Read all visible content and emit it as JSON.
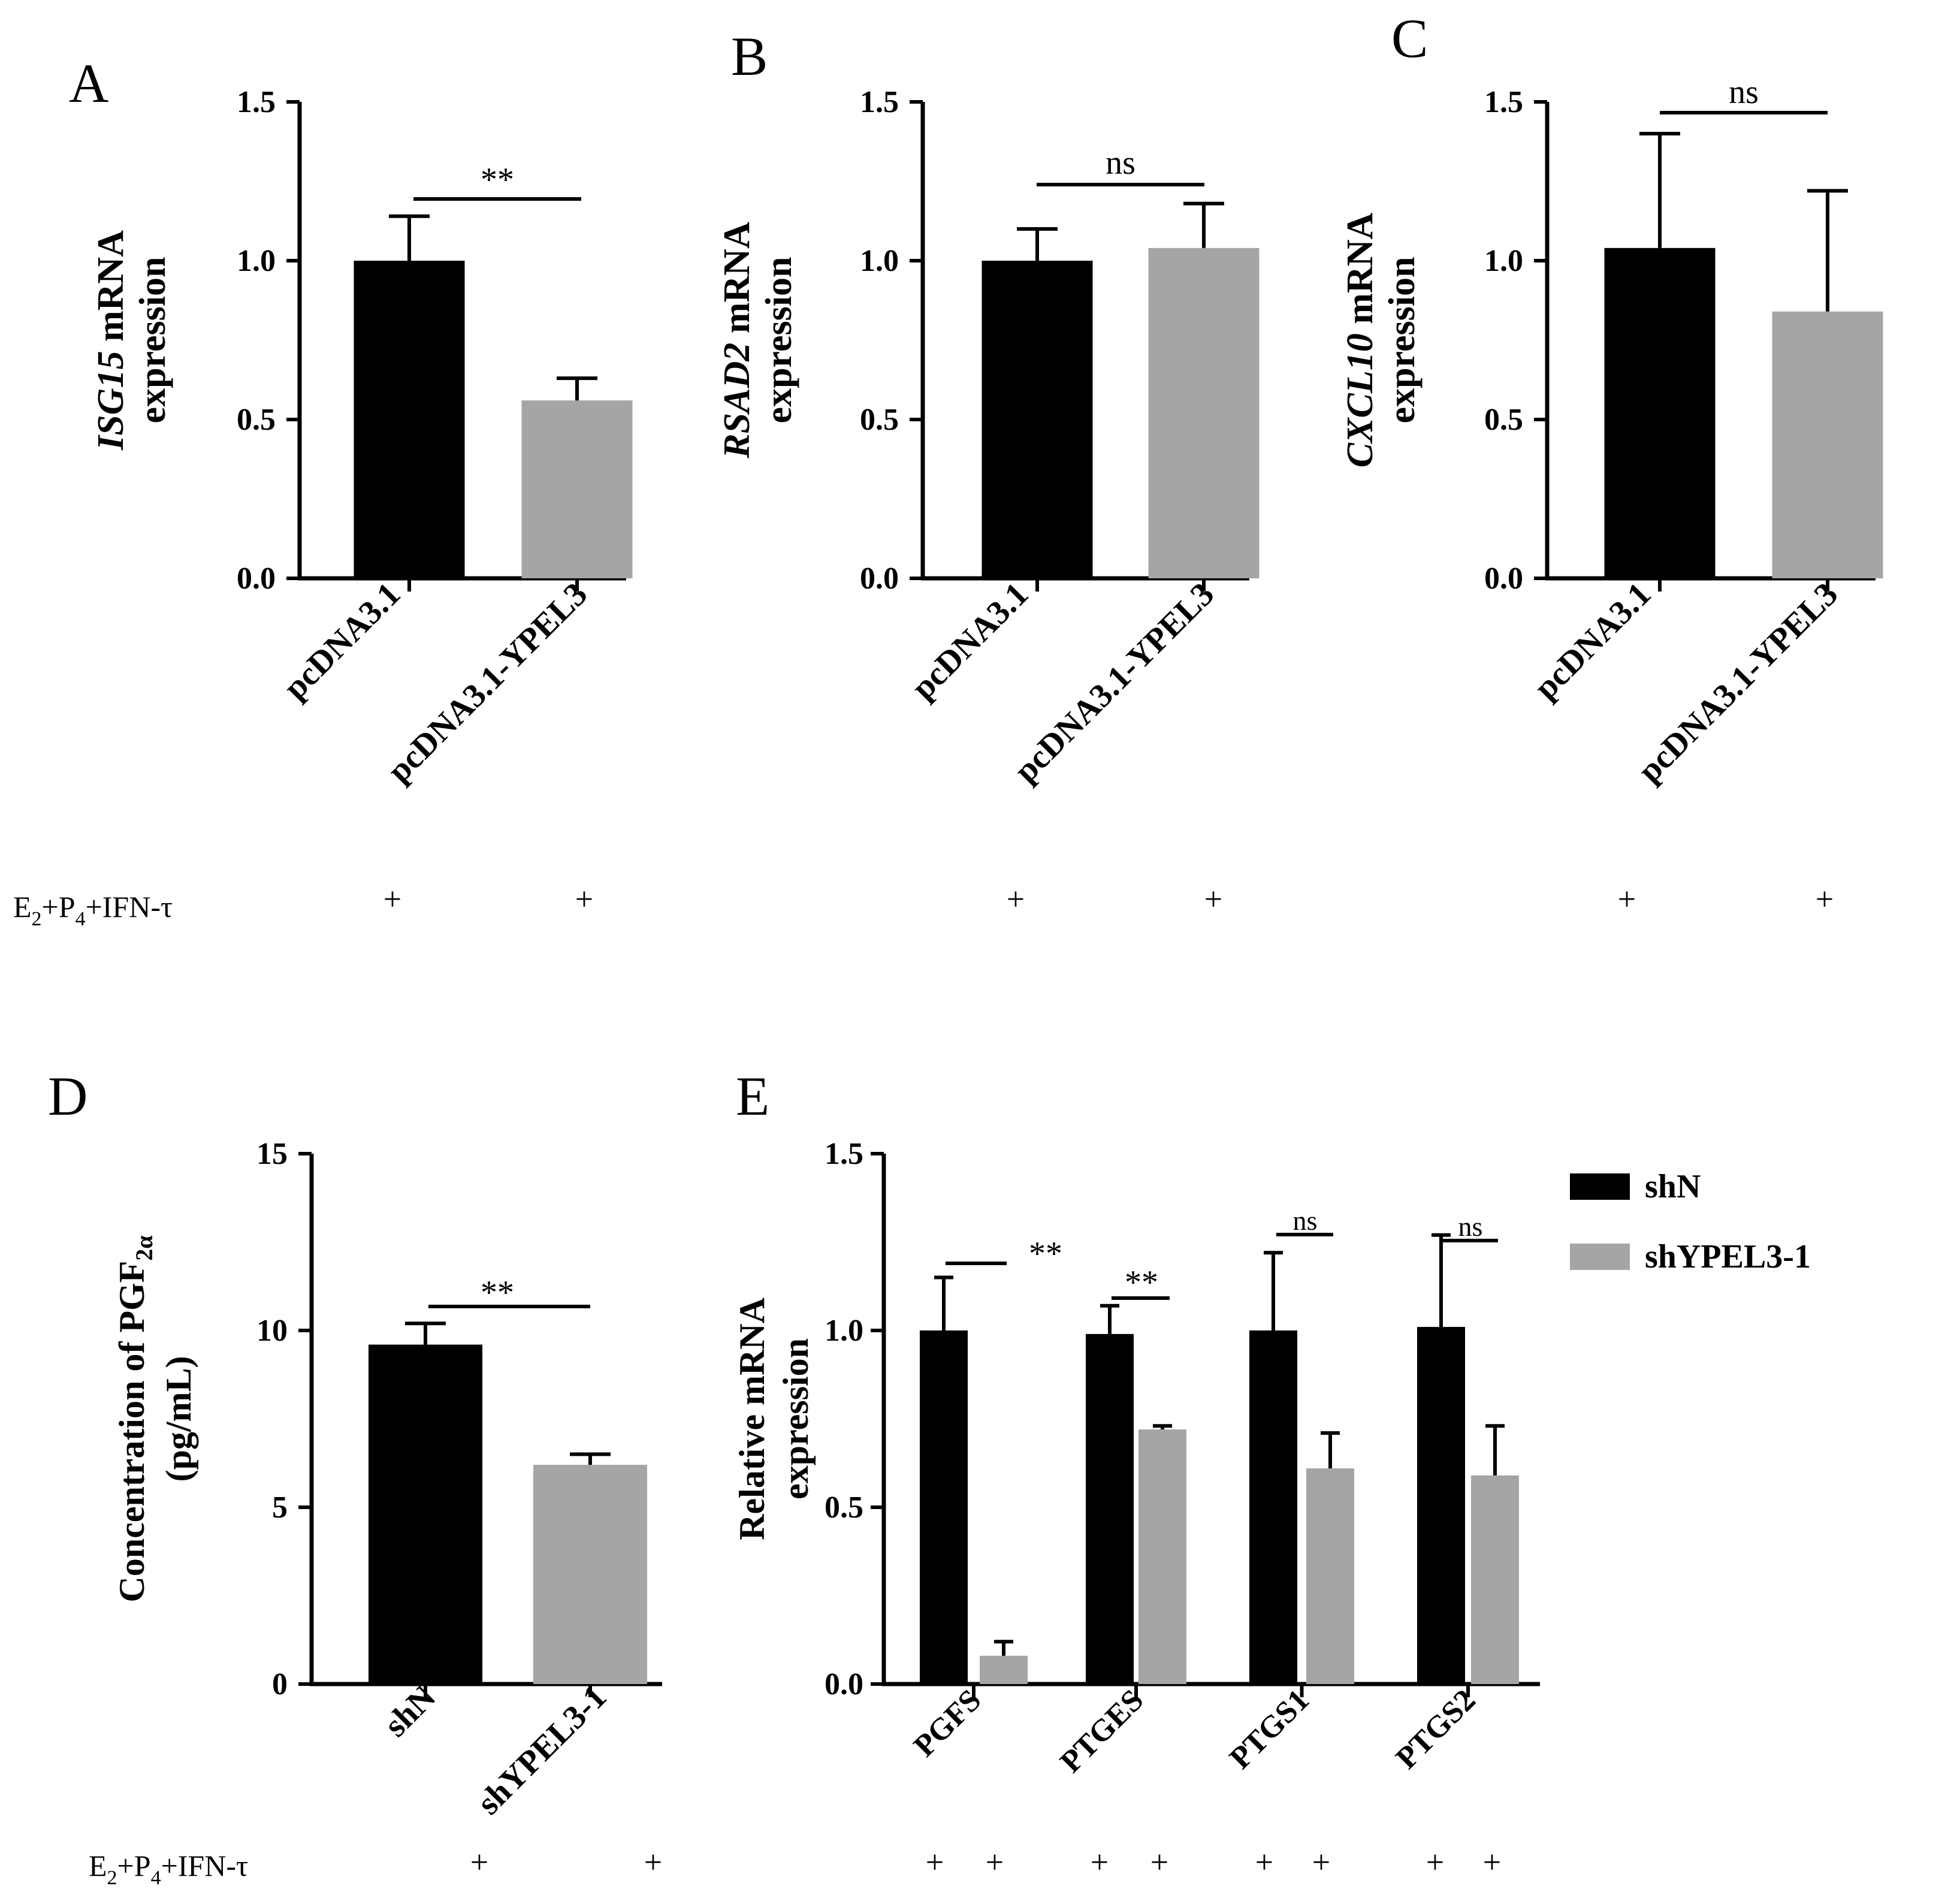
{
  "colors": {
    "control": "#000000",
    "treatment": "#a5a5a7",
    "axis": "#000000"
  },
  "chart_data": [
    {
      "panel": "A",
      "type": "bar",
      "categories": [
        "pcDNA3.1",
        "pcDNA3.1-YPEL3"
      ],
      "values": [
        1.0,
        0.56
      ],
      "errors": [
        0.14,
        0.07
      ],
      "ylabel_italic": "ISG15",
      "ylabel_rest": " mRNA",
      "ylabel_line2": "expression",
      "ylim": [
        0,
        1.5
      ],
      "yticks": [
        "0.0",
        "0.5",
        "1.0",
        "1.5"
      ],
      "significance": "**",
      "treatment_row": [
        "+",
        "+"
      ]
    },
    {
      "panel": "B",
      "type": "bar",
      "categories": [
        "pcDNA3.1",
        "pcDNA3.1-YPEL3"
      ],
      "values": [
        1.0,
        1.04
      ],
      "errors": [
        0.1,
        0.14
      ],
      "ylabel_italic": "RSAD2",
      "ylabel_rest": " mRNA",
      "ylabel_line2": "expression",
      "ylim": [
        0,
        1.5
      ],
      "yticks": [
        "0.0",
        "0.5",
        "1.0",
        "1.5"
      ],
      "significance": "ns",
      "treatment_row": [
        "+",
        "+"
      ]
    },
    {
      "panel": "C",
      "type": "bar",
      "categories": [
        "pcDNA3.1",
        "pcDNA3.1-YPEL3"
      ],
      "values": [
        1.04,
        0.84
      ],
      "errors": [
        0.36,
        0.38
      ],
      "ylabel_italic": "CXCL10",
      "ylabel_rest": " mRNA",
      "ylabel_line2": "expression",
      "ylim": [
        0,
        1.5
      ],
      "yticks": [
        "0.0",
        "0.5",
        "1.0",
        "1.5"
      ],
      "significance": "ns",
      "treatment_row": [
        "+",
        "+"
      ]
    },
    {
      "panel": "D",
      "type": "bar",
      "categories": [
        "shN",
        "shYPEL3-1"
      ],
      "values": [
        9.6,
        6.2
      ],
      "errors": [
        0.6,
        0.3
      ],
      "ylabel_line1": "Concentration of PGF",
      "ylabel_sub": "2α",
      "ylabel_line2": "(pg/mL)",
      "ylim": [
        0,
        15
      ],
      "yticks": [
        "0",
        "5",
        "10",
        "15"
      ],
      "significance": "**",
      "treatment_row": [
        "+",
        "+"
      ]
    },
    {
      "panel": "E",
      "type": "bar",
      "categories": [
        "PGFS",
        "PTGES",
        "PTGS1",
        "PTGS2"
      ],
      "series": [
        {
          "name": "shN",
          "values": [
            1.0,
            0.99,
            1.0,
            1.01
          ],
          "errors": [
            0.15,
            0.08,
            0.22,
            0.26
          ]
        },
        {
          "name": "shYPEL3-1",
          "values": [
            0.08,
            0.72,
            0.61,
            0.59
          ],
          "errors": [
            0.04,
            0.01,
            0.1,
            0.14
          ]
        }
      ],
      "ylabel_line1": "Relative mRNA",
      "ylabel_line2": "expression",
      "ylim": [
        0,
        1.5
      ],
      "yticks": [
        "0.0",
        "0.5",
        "1.0",
        "1.5"
      ],
      "significance": [
        "**",
        "**",
        "ns",
        "ns"
      ],
      "treatment_row": [
        "+",
        "+",
        "+",
        "+",
        "+",
        "+",
        "+",
        "+"
      ]
    }
  ],
  "treatment": {
    "label_E": "E",
    "label_sub1": "2",
    "label_P": "+P",
    "label_sub2": "4",
    "label_rest": "+IFN-τ"
  }
}
